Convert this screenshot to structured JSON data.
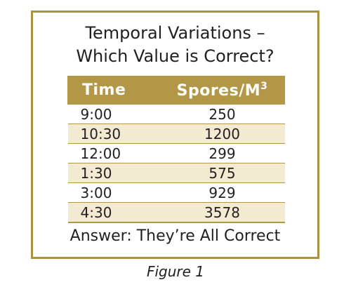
{
  "title": {
    "line1": "Temporal Variations –",
    "line2": "Which Value is Correct?"
  },
  "table": {
    "headers": {
      "time": "Time",
      "spores": "Spores/M",
      "spores_superscript": "3"
    },
    "rows": [
      {
        "time": "9:00",
        "value": "250"
      },
      {
        "time": "10:30",
        "value": "1200"
      },
      {
        "time": "12:00",
        "value": "299"
      },
      {
        "time": "1:30",
        "value": "575"
      },
      {
        "time": "3:00",
        "value": "929"
      },
      {
        "time": "4:30",
        "value": "3578"
      }
    ]
  },
  "answer": "Answer: They’re All Correct",
  "caption": "Figure 1",
  "colors": {
    "border": "#a99245",
    "header_bg": "#b19746",
    "stripe": "#f3ead2"
  }
}
